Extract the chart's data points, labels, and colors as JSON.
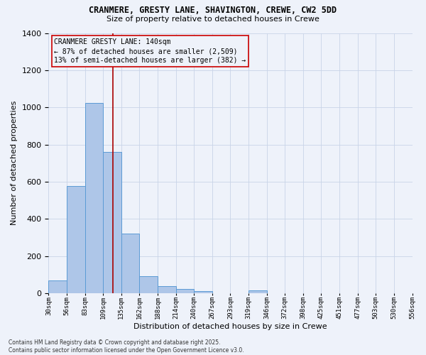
{
  "title1": "CRANMERE, GRESTY LANE, SHAVINGTON, CREWE, CW2 5DD",
  "title2": "Size of property relative to detached houses in Crewe",
  "xlabel": "Distribution of detached houses by size in Crewe",
  "ylabel": "Number of detached properties",
  "bar_values": [
    70,
    578,
    1025,
    760,
    320,
    93,
    37,
    22,
    13,
    0,
    0,
    16,
    0,
    0,
    0,
    0,
    0,
    0,
    0,
    0
  ],
  "categories": [
    "30sqm",
    "56sqm",
    "83sqm",
    "109sqm",
    "135sqm",
    "162sqm",
    "188sqm",
    "214sqm",
    "240sqm",
    "267sqm",
    "293sqm",
    "319sqm",
    "346sqm",
    "372sqm",
    "398sqm",
    "425sqm",
    "451sqm",
    "477sqm",
    "503sqm",
    "530sqm",
    "556sqm"
  ],
  "bar_color": "#aec6e8",
  "bar_edge_color": "#5b9bd5",
  "grid_color": "#c8d4e8",
  "background_color": "#eef2fa",
  "annotation_box_color": "#cc0000",
  "vline_color": "#aa0000",
  "vline_x": 3.55,
  "annotation_text": "CRANMERE GRESTY LANE: 140sqm\n← 87% of detached houses are smaller (2,509)\n13% of semi-detached houses are larger (382) →",
  "footer_text": "Contains HM Land Registry data © Crown copyright and database right 2025.\nContains public sector information licensed under the Open Government Licence v3.0.",
  "ylim": [
    0,
    1400
  ],
  "yticks": [
    0,
    200,
    400,
    600,
    800,
    1000,
    1200,
    1400
  ]
}
